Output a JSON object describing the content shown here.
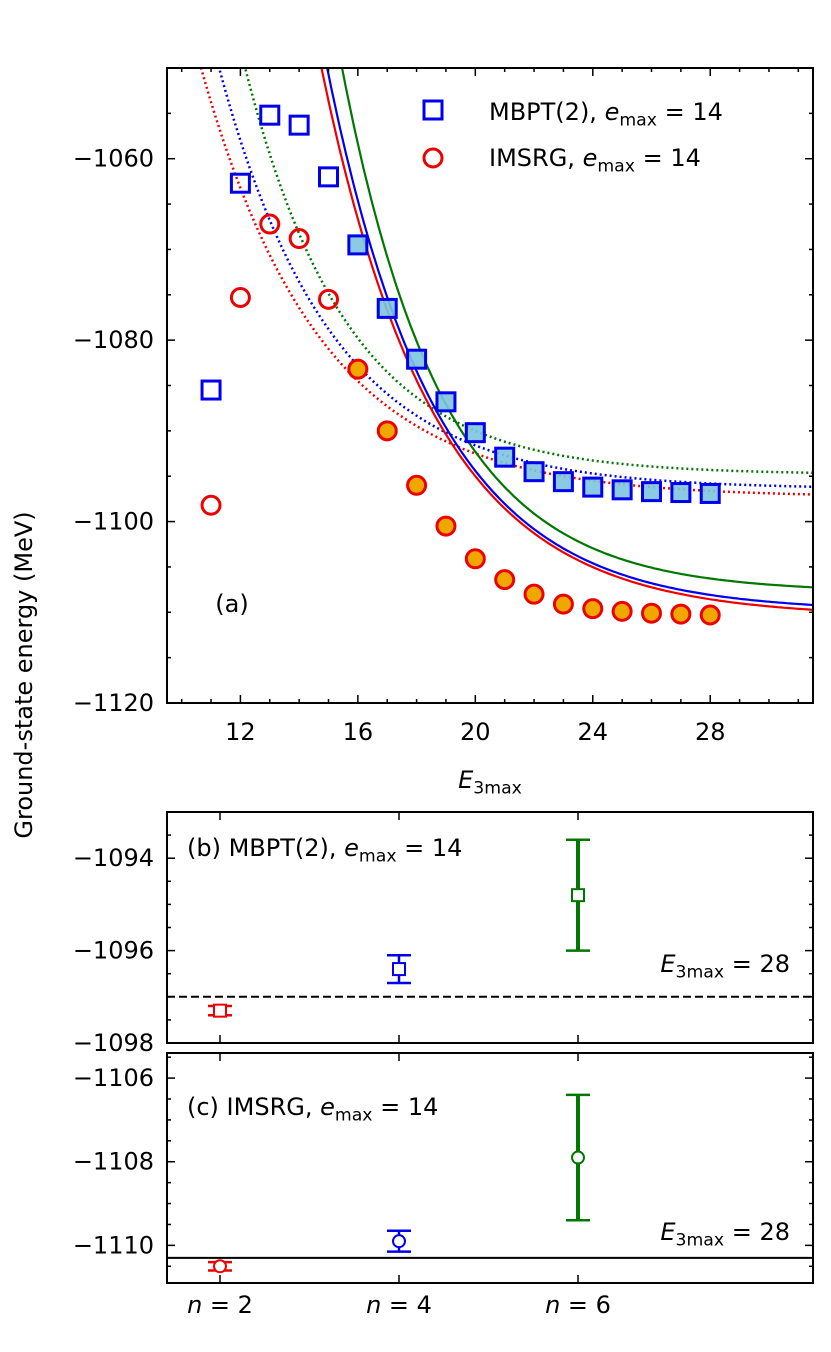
{
  "ylabel": "Ground-state energy (MeV)",
  "chart_data": [
    {
      "panel": "a",
      "type": "scatter",
      "panel_label": "(a)",
      "xlabel_base": "E",
      "xlabel_sub": "3max",
      "xlim": [
        9.5,
        31.5
      ],
      "ylim": [
        -1120,
        -1050
      ],
      "xticks": [
        12,
        16,
        20,
        24,
        28
      ],
      "xtick_labels": [
        "12",
        "16",
        "20",
        "24",
        "28"
      ],
      "yticks": [
        -1060,
        -1080,
        -1100,
        -1120
      ],
      "ytick_labels": [
        "−1060",
        "−1080",
        "−1100",
        "−1120"
      ],
      "legend_position": "top-right",
      "series": [
        {
          "name": "MBPT(2)",
          "legend_prefix": "MBPT(2), ",
          "legend_math": "e",
          "legend_sub": "max",
          "legend_eq": " = 14",
          "marker": "square",
          "color": "#0000ee",
          "x": [
            11,
            12,
            13,
            14,
            15,
            16,
            17,
            18,
            19,
            20,
            21,
            22,
            23,
            24,
            25,
            26,
            27,
            28
          ],
          "values": [
            -1085.5,
            -1062.7,
            -1055.2,
            -1056.3,
            -1062.0,
            -1069.5,
            -1076.5,
            -1082.1,
            -1086.8,
            -1090.2,
            -1092.9,
            -1094.5,
            -1095.6,
            -1096.2,
            -1096.5,
            -1096.7,
            -1096.8,
            -1096.9
          ],
          "filled_from_x": 16,
          "fill_color": "#7ec4e0"
        },
        {
          "name": "IMSRG",
          "legend_prefix": "IMSRG, ",
          "legend_math": "e",
          "legend_sub": "max",
          "legend_eq": " = 14",
          "marker": "circle",
          "color": "#ee0000",
          "x": [
            11,
            12,
            13,
            14,
            15,
            16,
            17,
            18,
            19,
            20,
            21,
            22,
            23,
            24,
            25,
            26,
            27,
            28
          ],
          "values": [
            -1098.2,
            -1075.3,
            -1067.2,
            -1068.8,
            -1075.5,
            -1083.2,
            -1090.0,
            -1096.0,
            -1100.5,
            -1104.1,
            -1106.4,
            -1108.0,
            -1109.1,
            -1109.6,
            -1109.9,
            -1110.1,
            -1110.2,
            -1110.3
          ],
          "filled_from_x": 16,
          "fill_color": "#f0a800"
        }
      ],
      "fits": [
        {
          "label": "MBPT(2) n=2",
          "style": "dotted",
          "color": "#ee0000",
          "A": -1097.3,
          "B": 4.8,
          "k": 0.245
        },
        {
          "label": "MBPT(2) n=4",
          "style": "dotted",
          "color": "#0000ee",
          "A": -1096.4,
          "B": 4.8,
          "k": 0.26
        },
        {
          "label": "MBPT(2) n=6",
          "style": "dotted",
          "color": "#007700",
          "A": -1094.8,
          "B": 4.8,
          "k": 0.285
        },
        {
          "label": "IMSRG n=2",
          "style": "solid",
          "color": "#ee0000",
          "A": -1110.5,
          "B": 15.5,
          "k": 0.26
        },
        {
          "label": "IMSRG n=4",
          "style": "solid",
          "color": "#0000ee",
          "A": -1109.9,
          "B": 15.5,
          "k": 0.268
        },
        {
          "label": "IMSRG n=6",
          "style": "solid",
          "color": "#007700",
          "A": -1107.8,
          "B": 15.5,
          "k": 0.29
        }
      ]
    },
    {
      "panel": "b",
      "type": "errorbar",
      "title_prefix": "(b) MBPT(2), ",
      "title_math": "e",
      "title_sub": "max",
      "title_eq": " = 14",
      "annotation_base": "E",
      "annotation_sub": "3max",
      "annotation_eq": " = 28",
      "ylim": [
        -1098,
        -1093
      ],
      "yticks": [
        -1094,
        -1096,
        -1098
      ],
      "ytick_labels": [
        "−1094",
        "−1096",
        "−1098"
      ],
      "reference_value": -1097.0,
      "reference_style": "dashed",
      "marker": "square",
      "points": [
        {
          "x": 1,
          "value": -1097.3,
          "err": 0.1,
          "color": "#ee0000"
        },
        {
          "x": 2,
          "value": -1096.4,
          "err": 0.3,
          "color": "#0000ee"
        },
        {
          "x": 3,
          "value": -1094.8,
          "err": 1.2,
          "color": "#007700"
        }
      ]
    },
    {
      "panel": "c",
      "type": "errorbar",
      "title_prefix": "(c) IMSRG, ",
      "title_math": "e",
      "title_sub": "max",
      "title_eq": " = 14",
      "annotation_base": "E",
      "annotation_sub": "3max",
      "annotation_eq": " = 28",
      "ylim": [
        -1110.9,
        -1105.4
      ],
      "yticks": [
        -1106,
        -1108,
        -1110
      ],
      "ytick_labels": [
        "−1106",
        "−1108",
        "−1110"
      ],
      "reference_value": -1110.3,
      "reference_style": "solid",
      "marker": "circle",
      "xtick_labels": [
        {
          "x": 1,
          "math": "n",
          "eq": " = 2"
        },
        {
          "x": 2,
          "math": "n",
          "eq": " = 4"
        },
        {
          "x": 3,
          "math": "n",
          "eq": " = 6"
        }
      ],
      "points": [
        {
          "x": 1,
          "value": -1110.5,
          "err": 0.1,
          "color": "#ee0000"
        },
        {
          "x": 2,
          "value": -1109.9,
          "err": 0.25,
          "color": "#0000ee"
        },
        {
          "x": 3,
          "value": -1107.9,
          "err": 1.5,
          "color": "#007700"
        }
      ]
    }
  ]
}
